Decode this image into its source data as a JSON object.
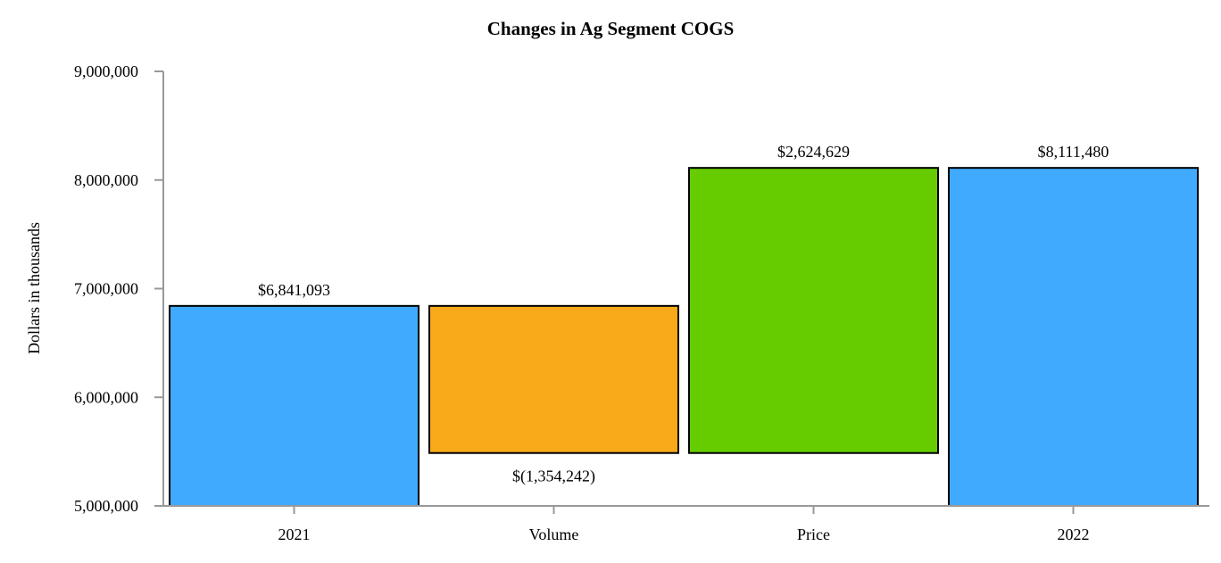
{
  "chart_data": {
    "type": "bar",
    "subtype": "waterfall",
    "title": "Changes in Ag Segment COGS",
    "xlabel": "",
    "ylabel": "Dollars in thousands",
    "ylim": [
      5000000,
      9000000
    ],
    "yticks": [
      5000000,
      6000000,
      7000000,
      8000000,
      9000000
    ],
    "ytick_labels": [
      "5,000,000",
      "6,000,000",
      "7,000,000",
      "8,000,000",
      "9,000,000"
    ],
    "categories": [
      "2021",
      "Volume",
      "Price",
      "2022"
    ],
    "values": [
      6841093,
      -1354242,
      2624629,
      8111480
    ],
    "bar_kinds": [
      "total",
      "delta",
      "delta",
      "total"
    ],
    "data_labels": [
      "$6,841,093",
      "$(1,354,242)",
      "$2,624,629",
      "$8,111,480"
    ],
    "colors": [
      "#40AAFF",
      "#F8AA1A",
      "#66CC00",
      "#40AAFF"
    ],
    "grid": false,
    "legend": "none"
  }
}
